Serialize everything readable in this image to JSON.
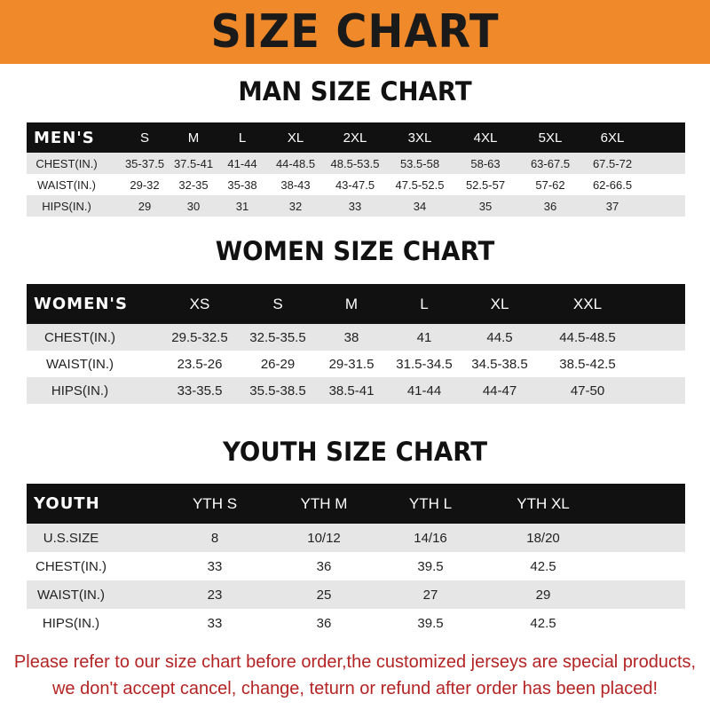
{
  "banner": {
    "title": "SIZE CHART",
    "color": "#f0892a"
  },
  "men": {
    "title": "MAN SIZE CHART",
    "header": [
      "MEN'S",
      "S",
      "M",
      "L",
      "XL",
      "2XL",
      "3XL",
      "4XL",
      "5XL",
      "6XL"
    ],
    "rows": [
      [
        "CHEST(IN.)",
        "35-37.5",
        "37.5-41",
        "41-44",
        "44-48.5",
        "48.5-53.5",
        "53.5-58",
        "58-63",
        "63-67.5",
        "67.5-72"
      ],
      [
        "WAIST(IN.)",
        "29-32",
        "32-35",
        "35-38",
        "38-43",
        "43-47.5",
        "47.5-52.5",
        "52.5-57",
        "57-62",
        "62-66.5"
      ],
      [
        "HIPS(IN.)",
        "29",
        "30",
        "31",
        "32",
        "33",
        "34",
        "35",
        "36",
        "37"
      ]
    ]
  },
  "women": {
    "title": "WOMEN SIZE CHART",
    "header": [
      "WOMEN'S",
      "XS",
      "S",
      "M",
      "L",
      "XL",
      "XXL"
    ],
    "rows": [
      [
        "CHEST(IN.)",
        "29.5-32.5",
        "32.5-35.5",
        "38",
        "41",
        "44.5",
        "44.5-48.5"
      ],
      [
        "WAIST(IN.)",
        "23.5-26",
        "26-29",
        "29-31.5",
        "31.5-34.5",
        "34.5-38.5",
        "38.5-42.5"
      ],
      [
        "HIPS(IN.)",
        "33-35.5",
        "35.5-38.5",
        "38.5-41",
        "41-44",
        "44-47",
        "47-50"
      ]
    ]
  },
  "youth": {
    "title": "YOUTH SIZE CHART",
    "header": [
      "YOUTH",
      "YTH S",
      "YTH M",
      "YTH L",
      "YTH XL"
    ],
    "rows": [
      [
        "U.S.SIZE",
        "8",
        "10/12",
        "14/16",
        "18/20"
      ],
      [
        "CHEST(IN.)",
        "33",
        "36",
        "39.5",
        "42.5"
      ],
      [
        "WAIST(IN.)",
        "23",
        "25",
        "27",
        "29"
      ],
      [
        "HIPS(IN.)",
        "33",
        "36",
        "39.5",
        "42.5"
      ]
    ]
  },
  "footer": {
    "line1": "Please refer to our size chart before order,the customized jerseys are special products,",
    "line2": "we don't accept cancel, change, teturn or refund after order has been placed!",
    "color": "#b42424"
  }
}
